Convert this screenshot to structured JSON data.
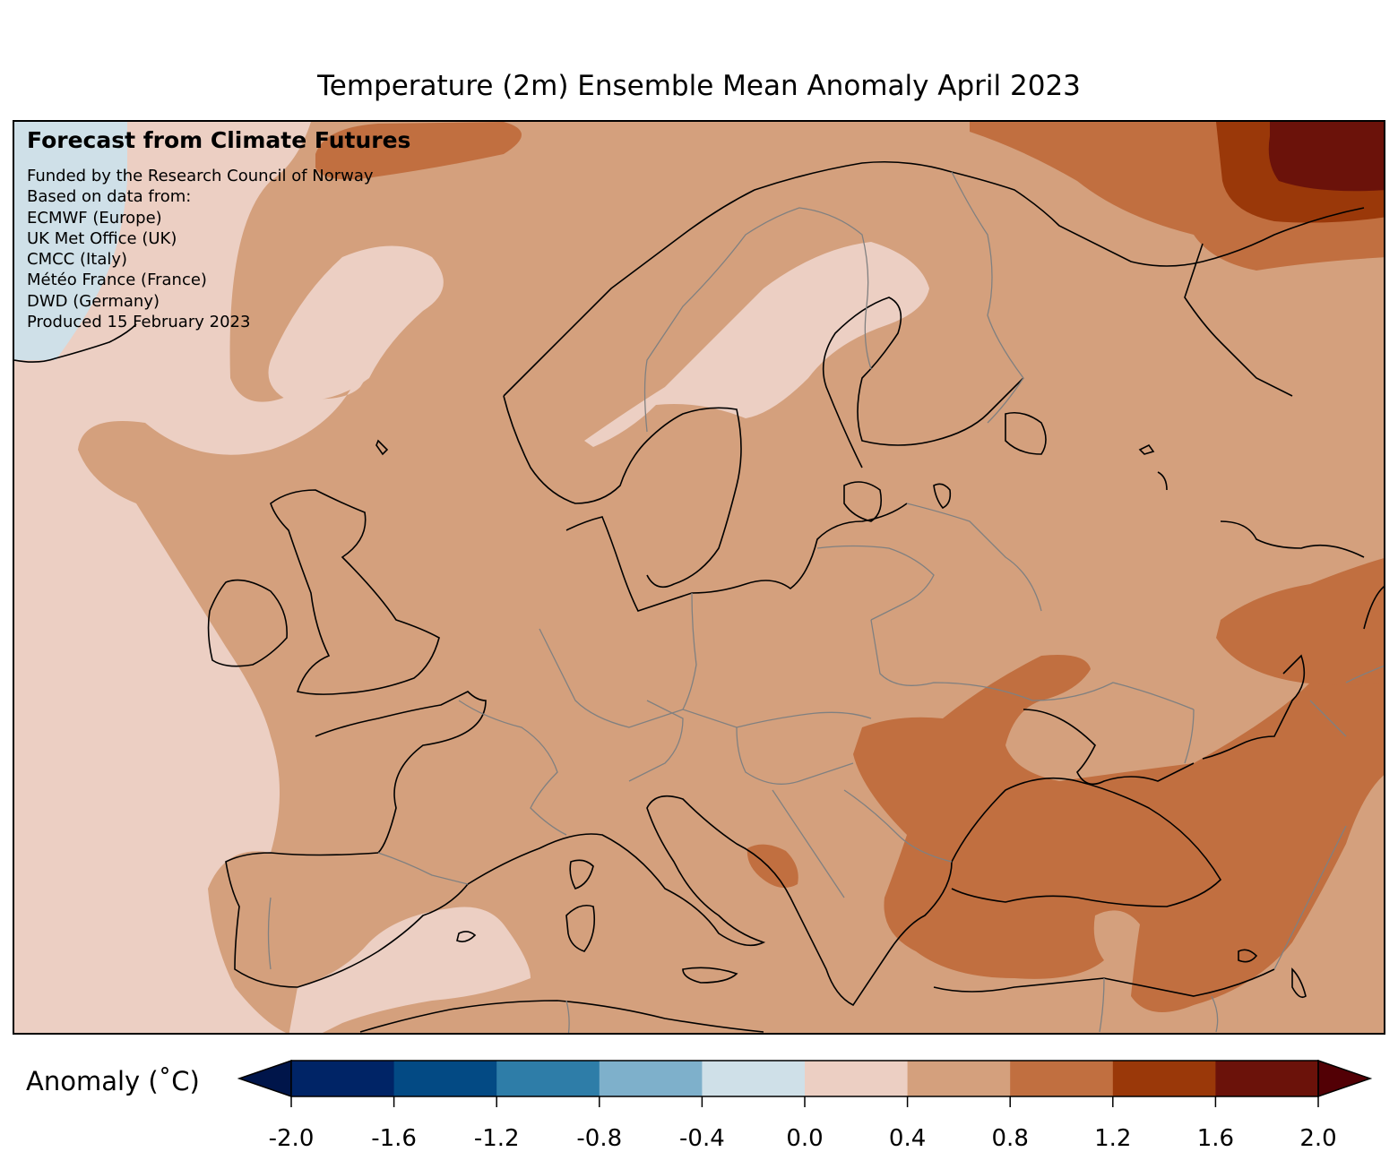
{
  "title": "Temperature (2m) Ensemble Mean Anomaly April 2023",
  "credits": {
    "heading": "Forecast from Climate Futures",
    "lines": [
      "Funded by the Research Council of Norway",
      "Based on data from:",
      "ECMWF (Europe)",
      "UK Met Office (UK)",
      "CMCC (Italy)",
      "Météo France (France)",
      "DWD (Germany)",
      "Produced 15 February 2023"
    ]
  },
  "colorbar": {
    "label": "Anomaly (˚C)",
    "ticks": [
      "-2.0",
      "-1.6",
      "-1.2",
      "-0.8",
      "-0.4",
      "0.0",
      "0.4",
      "0.8",
      "1.2",
      "1.6",
      "2.0"
    ],
    "bins": [
      {
        "from": -2.0,
        "to": -1.6,
        "color": "#002466"
      },
      {
        "from": -1.6,
        "to": -1.2,
        "color": "#034a84"
      },
      {
        "from": -1.2,
        "to": -0.8,
        "color": "#2e7da8"
      },
      {
        "from": -0.8,
        "to": -0.4,
        "color": "#7eb0cb"
      },
      {
        "from": -0.4,
        "to": 0.0,
        "color": "#cfe0e8"
      },
      {
        "from": 0.0,
        "to": 0.4,
        "color": "#eccfc3"
      },
      {
        "from": 0.4,
        "to": 0.8,
        "color": "#d4a07d"
      },
      {
        "from": 0.8,
        "to": 1.2,
        "color": "#c16f40"
      },
      {
        "from": 1.2,
        "to": 1.6,
        "color": "#9a3809"
      },
      {
        "from": 1.6,
        "to": 2.0,
        "color": "#6b120a"
      }
    ],
    "under_color": "#00154a",
    "over_color": "#520005"
  },
  "map": {
    "projection": "lambert-conformal-europe",
    "region": "Europe",
    "background_color": "#d4a07d",
    "coastline_color": "#000000",
    "border_color": "#808080"
  }
}
